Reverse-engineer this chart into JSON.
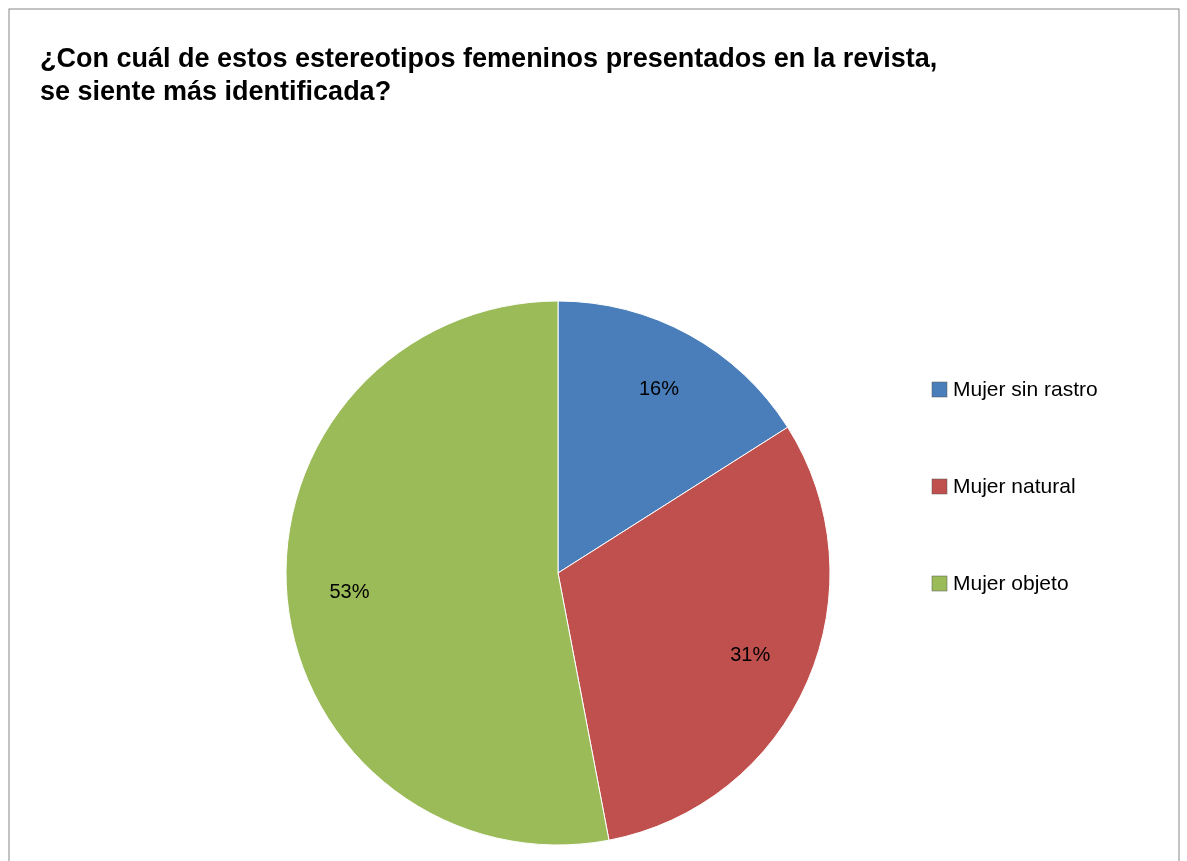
{
  "chart_data": {
    "type": "pie",
    "title": "¿Con cuál de estos estereotipos femeninos presentados en la revista, se siente más identificada?",
    "categories": [
      "Mujer sin rastro",
      "Mujer natural",
      "Mujer objeto"
    ],
    "values": [
      16,
      31,
      53
    ],
    "colors": [
      "#4a7ebb",
      "#c0504d",
      "#9bbb59"
    ],
    "value_labels": [
      "16%",
      "31%",
      "53%"
    ],
    "legend": "right"
  }
}
